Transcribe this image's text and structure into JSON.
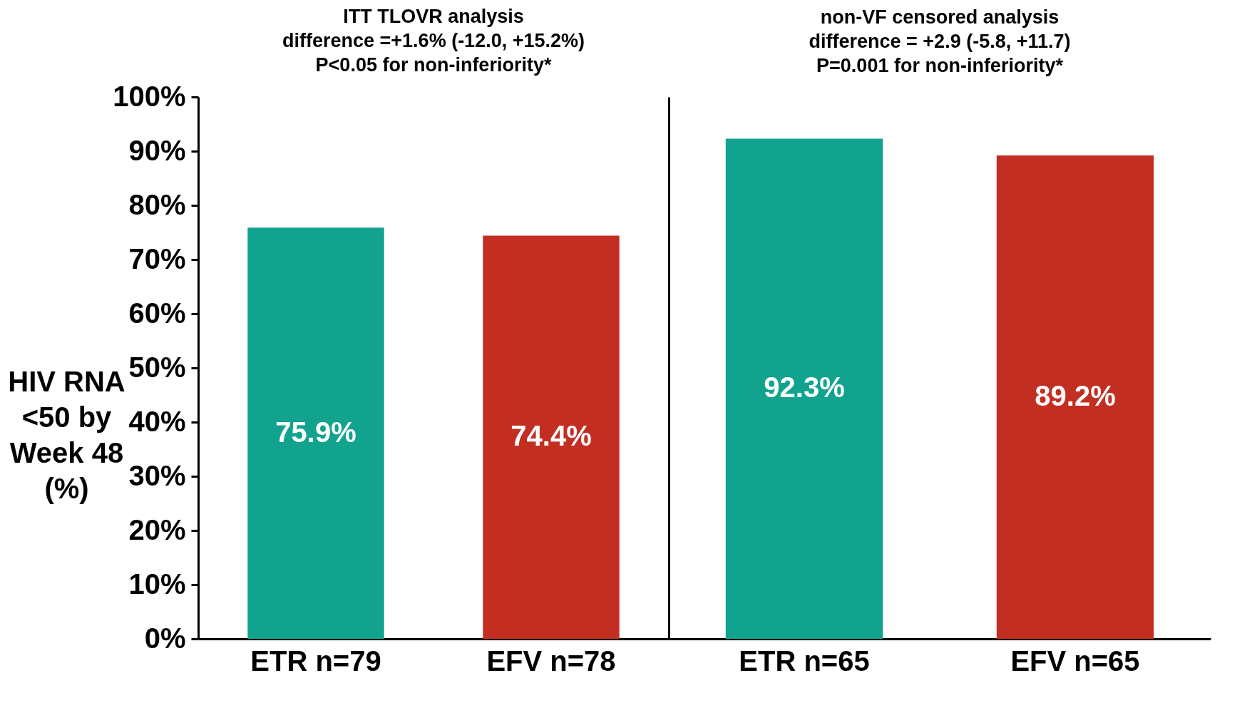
{
  "chart_data": [
    {
      "type": "bar",
      "title": "ITT TLOVR analysis\ndifference =+1.6% (-12.0, +15.2%)\nP<0.05 for non-inferiority*",
      "ylabel": "HIV RNA\n<50 by\nWeek 48\n(%)",
      "categories": [
        "ETR n=79",
        "EFV n=78"
      ],
      "values": [
        75.9,
        74.4
      ],
      "colors": [
        "#12a38f",
        "#c22f22"
      ],
      "value_labels": [
        "75.9%",
        "74.4%"
      ],
      "ylim": [
        0,
        100
      ],
      "yticks": [
        {
          "value": 0,
          "label": "0%"
        },
        {
          "value": 10,
          "label": "10%"
        },
        {
          "value": 20,
          "label": "20%"
        },
        {
          "value": 30,
          "label": "30%"
        },
        {
          "value": 40,
          "label": "40%"
        },
        {
          "value": 50,
          "label": "50%"
        },
        {
          "value": 60,
          "label": "60%"
        },
        {
          "value": 70,
          "label": "70%"
        },
        {
          "value": 80,
          "label": "80%"
        },
        {
          "value": 90,
          "label": "90%"
        },
        {
          "value": 100,
          "label": "100%"
        }
      ],
      "grid": false
    },
    {
      "type": "bar",
      "title": "non-VF censored analysis\ndifference = +2.9 (-5.8, +11.7)\nP=0.001 for non-inferiority*",
      "categories": [
        "ETR n=65",
        "EFV n=65"
      ],
      "values": [
        92.3,
        89.2
      ],
      "colors": [
        "#12a38f",
        "#c22f22"
      ],
      "value_labels": [
        "92.3%",
        "89.2%"
      ],
      "ylim": [
        0,
        100
      ],
      "grid": false,
      "tick_labels": "x"
    }
  ]
}
